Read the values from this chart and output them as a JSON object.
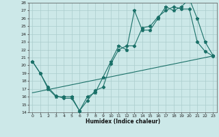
{
  "xlabel": "Humidex (Indice chaleur)",
  "xlim": [
    -0.5,
    23.5
  ],
  "ylim": [
    14,
    28
  ],
  "xticks": [
    0,
    1,
    2,
    3,
    4,
    5,
    6,
    7,
    8,
    9,
    10,
    11,
    12,
    13,
    14,
    15,
    16,
    17,
    18,
    19,
    20,
    21,
    22,
    23
  ],
  "yticks": [
    14,
    15,
    16,
    17,
    18,
    19,
    20,
    21,
    22,
    23,
    24,
    25,
    26,
    27,
    28
  ],
  "bg_color": "#cce8e8",
  "grid_color": "#aacccc",
  "line_color": "#1a7068",
  "line1_x": [
    0,
    1,
    2,
    3,
    4,
    5,
    6,
    7,
    8,
    9,
    10,
    11,
    12,
    13,
    14,
    15,
    16,
    17,
    18,
    19,
    20,
    21,
    22,
    23
  ],
  "line1_y": [
    20.5,
    19.0,
    17.0,
    16.0,
    16.0,
    16.0,
    14.2,
    16.0,
    16.5,
    18.5,
    20.5,
    22.5,
    22.0,
    27.0,
    24.5,
    24.5,
    26.0,
    27.5,
    27.0,
    27.5,
    28.5,
    26.0,
    23.0,
    21.3
  ],
  "line2_x": [
    0,
    1,
    2,
    3,
    4,
    5,
    6,
    7,
    8,
    9,
    10,
    11,
    12,
    13,
    14,
    15,
    16,
    17,
    18,
    19,
    20,
    21,
    22,
    23
  ],
  "line2_y": [
    20.5,
    19.0,
    17.2,
    16.1,
    15.8,
    15.8,
    14.2,
    15.5,
    16.8,
    17.2,
    20.2,
    22.0,
    22.5,
    22.5,
    24.8,
    25.0,
    26.2,
    27.0,
    27.5,
    27.2,
    27.2,
    23.0,
    21.8,
    21.2
  ],
  "line3_x": [
    0,
    23
  ],
  "line3_y": [
    16.5,
    21.2
  ]
}
